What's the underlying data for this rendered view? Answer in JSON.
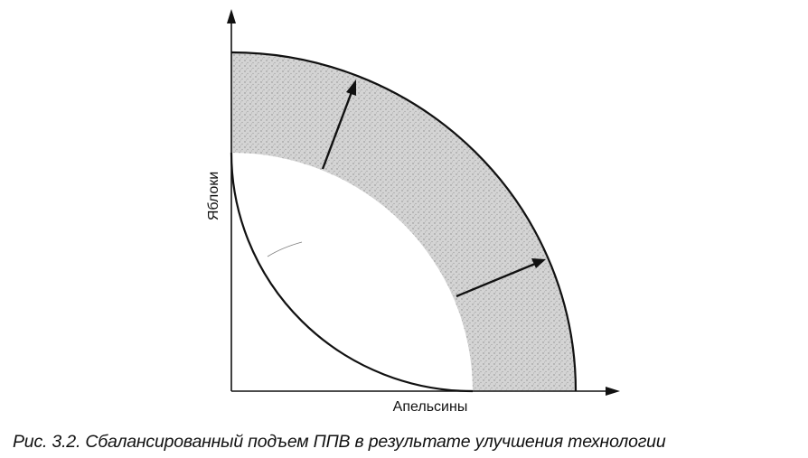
{
  "diagram": {
    "x_axis_label": "Апельсины",
    "y_axis_label": "Яблоки",
    "colors": {
      "ink": "#111111",
      "band_fill": "#d2d2d2",
      "background": "#ffffff"
    }
  },
  "caption": "Рис. 3.2. Сбалансированный подъем ППВ в результате улучшения технологии"
}
